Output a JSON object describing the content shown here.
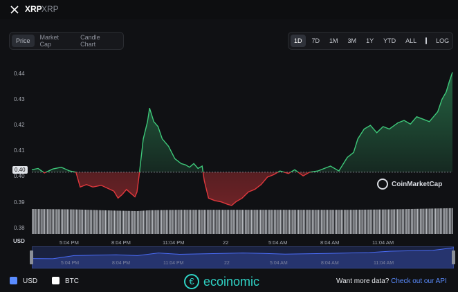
{
  "header": {
    "name": "XRP",
    "symbol": "XRP"
  },
  "tabs": [
    {
      "label": "Price",
      "active": true
    },
    {
      "label": "Market Cap",
      "active": false
    },
    {
      "label": "Candle Chart",
      "active": false
    }
  ],
  "ranges": [
    {
      "label": "1D",
      "active": true
    },
    {
      "label": "7D",
      "active": false
    },
    {
      "label": "1M",
      "active": false
    },
    {
      "label": "3M",
      "active": false
    },
    {
      "label": "1Y",
      "active": false
    },
    {
      "label": "YTD",
      "active": false
    },
    {
      "label": "ALL",
      "active": false
    },
    {
      "label": "LOG",
      "active": false
    }
  ],
  "brand_watermark": "CoinMarketCap",
  "currency_label": "USD",
  "current_price_tag": "0.40",
  "chart_data": {
    "type": "line",
    "y_ticks": [
      "0.44",
      "0.43",
      "0.42",
      "0.41",
      "0.40",
      "0.39",
      "0.38"
    ],
    "ylim": [
      0.3775,
      0.4465
    ],
    "baseline": 0.4025,
    "x_ticks": [
      "5:04 PM",
      "8:04 PM",
      "11:04 PM",
      "22",
      "5:04 AM",
      "8:04 AM",
      "11:04 AM"
    ],
    "colors": {
      "above": "#3ec97a",
      "below": "#e0383d",
      "volume": "#d0d3d8",
      "navigator": "#4a6cf7"
    },
    "price": [
      [
        0,
        0.4035
      ],
      [
        0.015,
        0.404
      ],
      [
        0.03,
        0.4022
      ],
      [
        0.05,
        0.4038
      ],
      [
        0.07,
        0.4045
      ],
      [
        0.09,
        0.403
      ],
      [
        0.105,
        0.4025
      ],
      [
        0.115,
        0.3965
      ],
      [
        0.13,
        0.3975
      ],
      [
        0.145,
        0.3965
      ],
      [
        0.165,
        0.3972
      ],
      [
        0.18,
        0.396
      ],
      [
        0.195,
        0.3948
      ],
      [
        0.205,
        0.392
      ],
      [
        0.215,
        0.3935
      ],
      [
        0.225,
        0.3955
      ],
      [
        0.235,
        0.394
      ],
      [
        0.245,
        0.3925
      ],
      [
        0.25,
        0.3945
      ],
      [
        0.255,
        0.401
      ],
      [
        0.265,
        0.416
      ],
      [
        0.275,
        0.423
      ],
      [
        0.28,
        0.4285
      ],
      [
        0.29,
        0.423
      ],
      [
        0.3,
        0.421
      ],
      [
        0.31,
        0.416
      ],
      [
        0.325,
        0.413
      ],
      [
        0.34,
        0.408
      ],
      [
        0.355,
        0.406
      ],
      [
        0.365,
        0.4055
      ],
      [
        0.375,
        0.4045
      ],
      [
        0.385,
        0.406
      ],
      [
        0.395,
        0.404
      ],
      [
        0.405,
        0.405
      ],
      [
        0.41,
        0.399
      ],
      [
        0.42,
        0.392
      ],
      [
        0.435,
        0.391
      ],
      [
        0.45,
        0.3905
      ],
      [
        0.465,
        0.3895
      ],
      [
        0.475,
        0.389
      ],
      [
        0.485,
        0.3905
      ],
      [
        0.5,
        0.392
      ],
      [
        0.515,
        0.3945
      ],
      [
        0.53,
        0.3955
      ],
      [
        0.545,
        0.3975
      ],
      [
        0.56,
        0.4005
      ],
      [
        0.575,
        0.4015
      ],
      [
        0.59,
        0.403
      ],
      [
        0.61,
        0.402
      ],
      [
        0.625,
        0.4035
      ],
      [
        0.645,
        0.401
      ],
      [
        0.66,
        0.4025
      ],
      [
        0.68,
        0.403
      ],
      [
        0.695,
        0.404
      ],
      [
        0.71,
        0.405
      ],
      [
        0.73,
        0.403
      ],
      [
        0.75,
        0.4085
      ],
      [
        0.765,
        0.4105
      ],
      [
        0.775,
        0.416
      ],
      [
        0.79,
        0.42
      ],
      [
        0.805,
        0.4215
      ],
      [
        0.82,
        0.4185
      ],
      [
        0.835,
        0.421
      ],
      [
        0.85,
        0.42
      ],
      [
        0.87,
        0.4225
      ],
      [
        0.885,
        0.4235
      ],
      [
        0.9,
        0.422
      ],
      [
        0.915,
        0.425
      ],
      [
        0.93,
        0.424
      ],
      [
        0.945,
        0.423
      ],
      [
        0.955,
        0.425
      ],
      [
        0.965,
        0.427
      ],
      [
        0.975,
        0.432
      ],
      [
        0.985,
        0.435
      ],
      [
        0.993,
        0.4395
      ],
      [
        1,
        0.443
      ]
    ],
    "volume": [
      [
        0,
        0.6
      ],
      [
        0.1,
        0.59
      ],
      [
        0.2,
        0.56
      ],
      [
        0.25,
        0.55
      ],
      [
        0.28,
        0.57
      ],
      [
        0.35,
        0.58
      ],
      [
        0.45,
        0.58
      ],
      [
        0.55,
        0.58
      ],
      [
        0.65,
        0.58
      ],
      [
        0.75,
        0.58
      ],
      [
        0.85,
        0.59
      ],
      [
        0.95,
        0.61
      ],
      [
        1,
        0.62
      ]
    ],
    "navigator": [
      [
        0,
        0.55
      ],
      [
        0.05,
        0.56
      ],
      [
        0.1,
        0.42
      ],
      [
        0.15,
        0.4
      ],
      [
        0.2,
        0.38
      ],
      [
        0.25,
        0.42
      ],
      [
        0.3,
        0.3
      ],
      [
        0.35,
        0.36
      ],
      [
        0.4,
        0.34
      ],
      [
        0.45,
        0.32
      ],
      [
        0.5,
        0.3
      ],
      [
        0.55,
        0.32
      ],
      [
        0.6,
        0.35
      ],
      [
        0.7,
        0.32
      ],
      [
        0.75,
        0.3
      ],
      [
        0.8,
        0.28
      ],
      [
        0.85,
        0.22
      ],
      [
        0.9,
        0.2
      ],
      [
        0.95,
        0.18
      ],
      [
        1,
        0.06
      ]
    ]
  },
  "footer": {
    "currencies": [
      {
        "label": "USD",
        "checked": true
      },
      {
        "label": "BTC",
        "checked": false
      }
    ],
    "watermark": "ecoinomic",
    "cta_text": "Want more data?",
    "cta_link": "Check out our API"
  }
}
